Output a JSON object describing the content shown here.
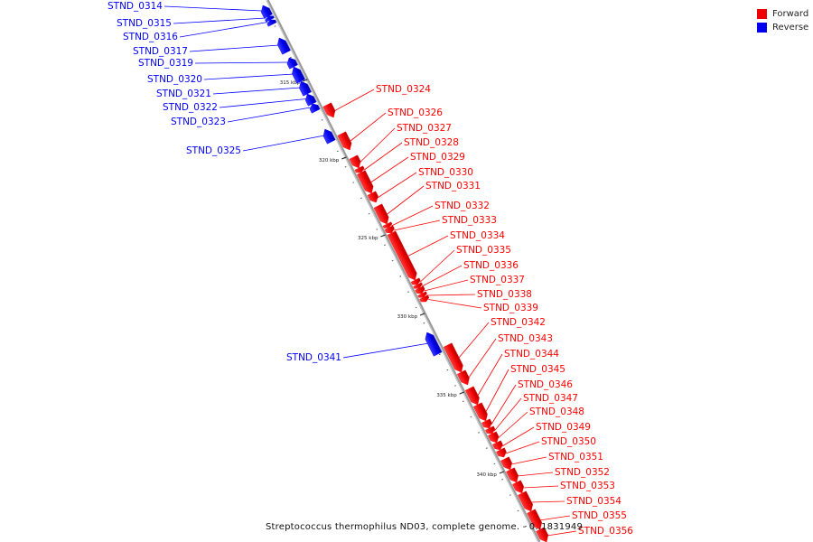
{
  "legend": {
    "forward_label": "Forward",
    "reverse_label": "Reverse",
    "forward_color": "#ff0000",
    "reverse_color": "#0000ff"
  },
  "title": "Streptococcus thermophilus ND03, complete genome. - 0..1831949",
  "ticks": [
    "315 kbp",
    "320 kbp",
    "325 kbp",
    "330 kbp",
    "335 kbp",
    "340 kbp"
  ],
  "genes": [
    {
      "id": "STND_0314",
      "strand": "reverse"
    },
    {
      "id": "STND_0315",
      "strand": "reverse"
    },
    {
      "id": "STND_0316",
      "strand": "reverse"
    },
    {
      "id": "STND_0317",
      "strand": "reverse"
    },
    {
      "id": "STND_0319",
      "strand": "reverse"
    },
    {
      "id": "STND_0320",
      "strand": "reverse"
    },
    {
      "id": "STND_0321",
      "strand": "reverse"
    },
    {
      "id": "STND_0322",
      "strand": "reverse"
    },
    {
      "id": "STND_0323",
      "strand": "reverse"
    },
    {
      "id": "STND_0324",
      "strand": "forward"
    },
    {
      "id": "STND_0325",
      "strand": "reverse"
    },
    {
      "id": "STND_0326",
      "strand": "forward"
    },
    {
      "id": "STND_0327",
      "strand": "forward"
    },
    {
      "id": "STND_0328",
      "strand": "forward"
    },
    {
      "id": "STND_0329",
      "strand": "forward"
    },
    {
      "id": "STND_0330",
      "strand": "forward"
    },
    {
      "id": "STND_0331",
      "strand": "forward"
    },
    {
      "id": "STND_0332",
      "strand": "forward"
    },
    {
      "id": "STND_0333",
      "strand": "forward"
    },
    {
      "id": "STND_0334",
      "strand": "forward"
    },
    {
      "id": "STND_0335",
      "strand": "forward"
    },
    {
      "id": "STND_0336",
      "strand": "forward"
    },
    {
      "id": "STND_0337",
      "strand": "forward"
    },
    {
      "id": "STND_0338",
      "strand": "forward"
    },
    {
      "id": "STND_0339",
      "strand": "forward"
    },
    {
      "id": "STND_0341",
      "strand": "reverse"
    },
    {
      "id": "STND_0342",
      "strand": "forward"
    },
    {
      "id": "STND_0343",
      "strand": "forward"
    },
    {
      "id": "STND_0344",
      "strand": "forward"
    },
    {
      "id": "STND_0345",
      "strand": "forward"
    },
    {
      "id": "STND_0346",
      "strand": "forward"
    },
    {
      "id": "STND_0347",
      "strand": "forward"
    },
    {
      "id": "STND_0348",
      "strand": "forward"
    },
    {
      "id": "STND_0349",
      "strand": "forward"
    },
    {
      "id": "STND_0350",
      "strand": "forward"
    },
    {
      "id": "STND_0351",
      "strand": "forward"
    },
    {
      "id": "STND_0352",
      "strand": "forward"
    },
    {
      "id": "STND_0353",
      "strand": "forward"
    },
    {
      "id": "STND_0354",
      "strand": "forward"
    },
    {
      "id": "STND_0355",
      "strand": "forward"
    },
    {
      "id": "STND_0356",
      "strand": "forward"
    }
  ]
}
